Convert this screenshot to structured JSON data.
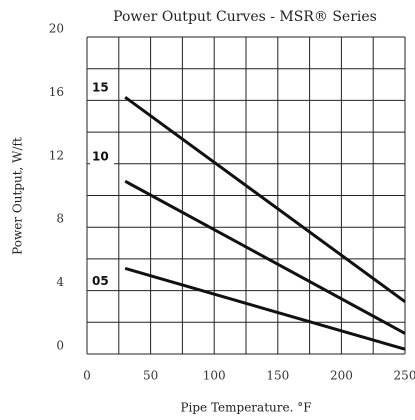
{
  "chart_data": {
    "type": "line",
    "title": "Power Output Curves - MSR® Series",
    "x_label": "Pipe Temperature. °F",
    "y_label": "Power Output, W/ft",
    "x": [
      30,
      250
    ],
    "series": [
      {
        "name": "05",
        "color": "#111111",
        "values": [
          5.4,
          0.3
        ]
      },
      {
        "name": "10",
        "color": "#111111",
        "values": [
          10.9,
          1.3
        ]
      },
      {
        "name": "15",
        "color": "#111111",
        "values": [
          16.2,
          3.3
        ]
      }
    ],
    "xlim": [
      0,
      250
    ],
    "xticks": [
      0,
      50,
      100,
      150,
      200,
      250
    ],
    "xminor_ticks": [
      25,
      75,
      125,
      175,
      225
    ],
    "ylim": [
      0,
      20
    ],
    "yticks": [
      0,
      4,
      8,
      12,
      16,
      20
    ],
    "yminor_ticks": [
      2,
      6,
      10,
      14,
      18
    ],
    "grid": true
  }
}
